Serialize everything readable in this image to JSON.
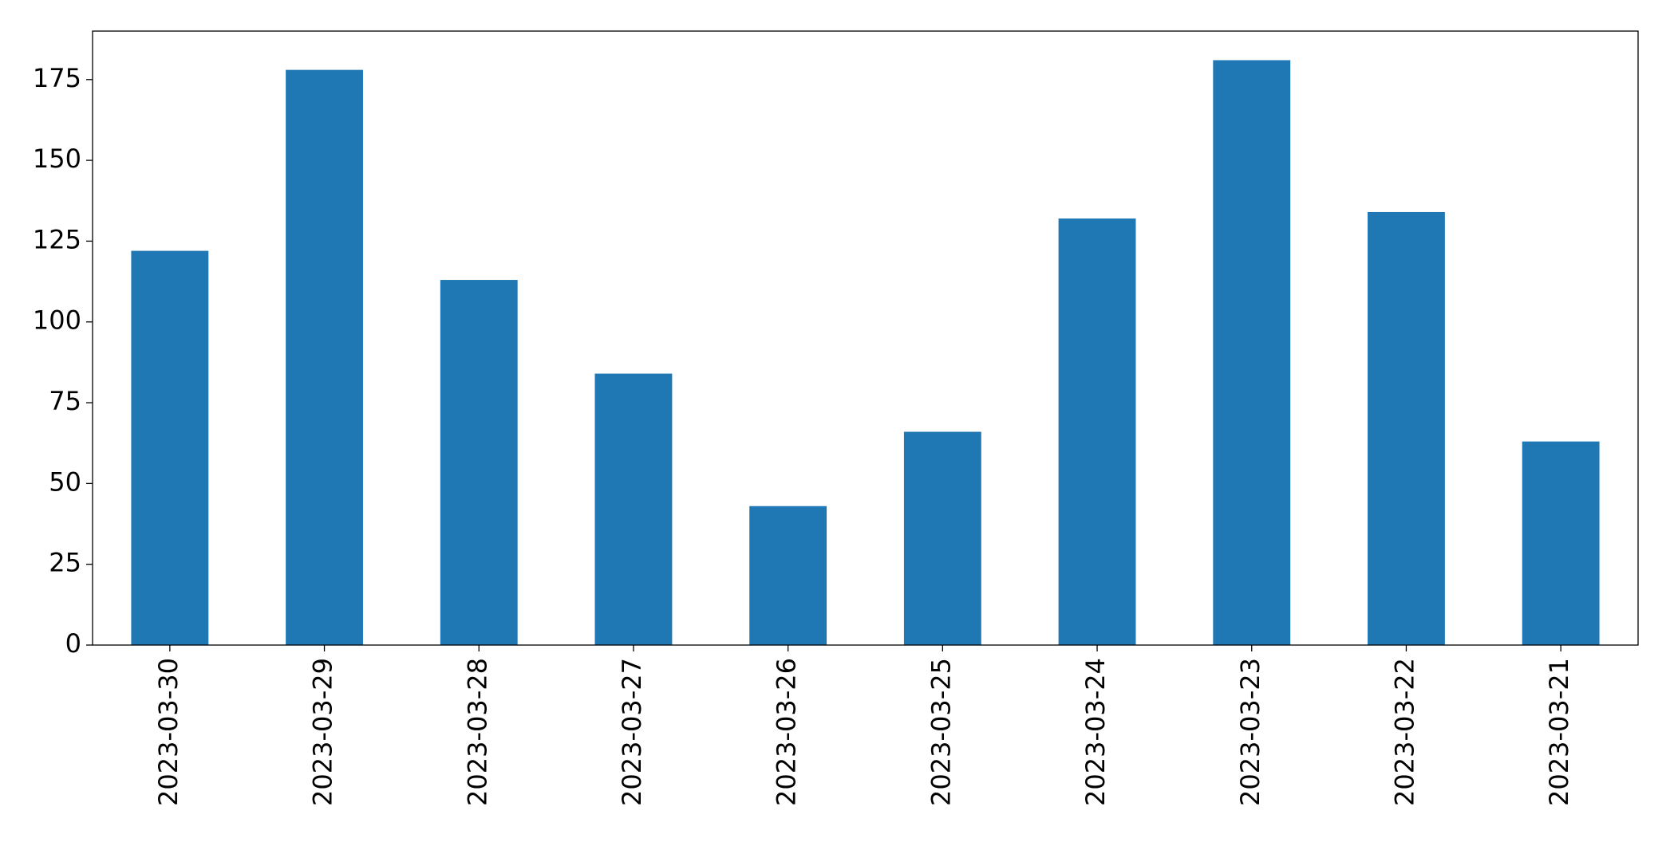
{
  "chart_data": {
    "type": "bar",
    "categories": [
      "2023-03-30",
      "2023-03-29",
      "2023-03-28",
      "2023-03-27",
      "2023-03-26",
      "2023-03-25",
      "2023-03-24",
      "2023-03-23",
      "2023-03-22",
      "2023-03-21"
    ],
    "values": [
      122,
      178,
      113,
      84,
      43,
      66,
      132,
      181,
      134,
      63
    ],
    "color": "#1f77b4",
    "ylim": [
      0,
      190
    ],
    "yticks": [
      0,
      25,
      50,
      75,
      100,
      125,
      150,
      175
    ],
    "grid": false
  }
}
